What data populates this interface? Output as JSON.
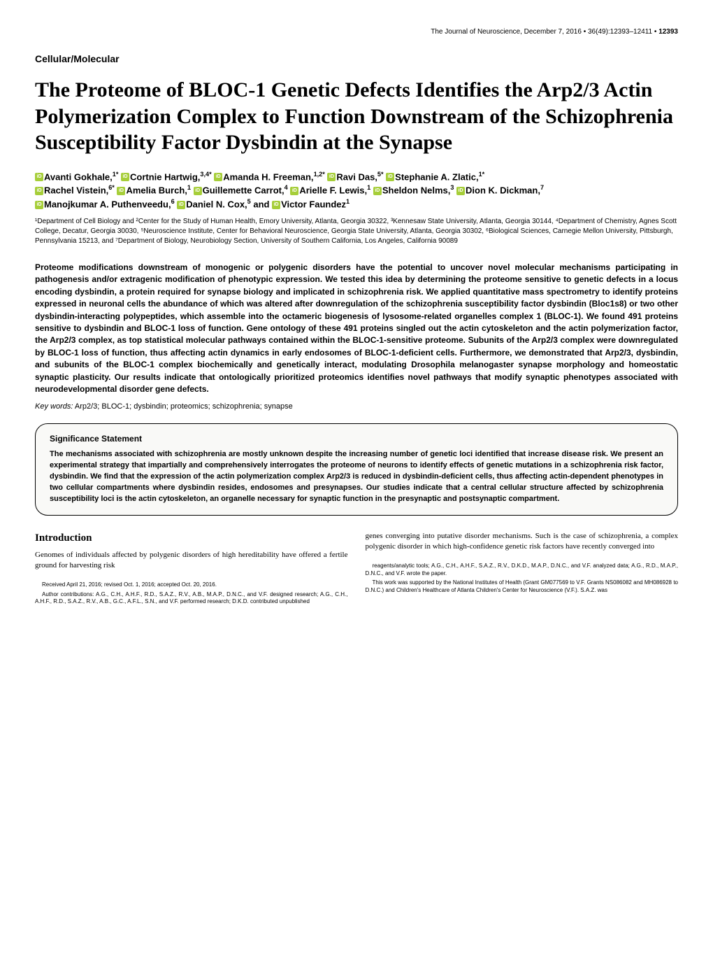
{
  "header": {
    "journal": "The Journal of Neuroscience, December 7, 2016",
    "volume": "36(49):12393–12411",
    "page": "12393"
  },
  "section_label": "Cellular/Molecular",
  "title": "The Proteome of BLOC-1 Genetic Defects Identifies the Arp2/3 Actin Polymerization Complex to Function Downstream of the Schizophrenia Susceptibility Factor Dysbindin at the Synapse",
  "authors": {
    "a1": "Avanti Gokhale,",
    "a1_sup": "1*",
    "a2": "Cortnie Hartwig,",
    "a2_sup": "3,4*",
    "a3": "Amanda H. Freeman,",
    "a3_sup": "1,2*",
    "a4": "Ravi Das,",
    "a4_sup": "5*",
    "a5": "Stephanie A. Zlatic,",
    "a5_sup": "1*",
    "a6": "Rachel Vistein,",
    "a6_sup": "6*",
    "a7": "Amelia Burch,",
    "a7_sup": "1",
    "a8": "Guillemette Carrot,",
    "a8_sup": "4",
    "a9": "Arielle F. Lewis,",
    "a9_sup": "1",
    "a10": "Sheldon Nelms,",
    "a10_sup": "3",
    "a11": "Dion K. Dickman,",
    "a11_sup": "7",
    "a12": "Manojkumar A. Puthenveedu,",
    "a12_sup": "6",
    "a13": "Daniel N. Cox,",
    "a13_sup": "5",
    "a14_pre": "and ",
    "a14": "Victor Faundez",
    "a14_sup": "1"
  },
  "affiliations": "¹Department of Cell Biology and ²Center for the Study of Human Health, Emory University, Atlanta, Georgia 30322, ³Kennesaw State University, Atlanta, Georgia 30144, ⁴Department of Chemistry, Agnes Scott College, Decatur, Georgia 30030, ⁵Neuroscience Institute, Center for Behavioral Neuroscience, Georgia State University, Atlanta, Georgia 30302, ⁶Biological Sciences, Carnegie Mellon University, Pittsburgh, Pennsylvania 15213, and ⁷Department of Biology, Neurobiology Section, University of Southern California, Los Angeles, California 90089",
  "abstract": "Proteome modifications downstream of monogenic or polygenic disorders have the potential to uncover novel molecular mechanisms participating in pathogenesis and/or extragenic modification of phenotypic expression. We tested this idea by determining the proteome sensitive to genetic defects in a locus encoding dysbindin, a protein required for synapse biology and implicated in schizophrenia risk. We applied quantitative mass spectrometry to identify proteins expressed in neuronal cells the abundance of which was altered after downregulation of the schizophrenia susceptibility factor dysbindin (Bloc1s8) or two other dysbindin-interacting polypeptides, which assemble into the octameric biogenesis of lysosome-related organelles complex 1 (BLOC-1). We found 491 proteins sensitive to dysbindin and BLOC-1 loss of function. Gene ontology of these 491 proteins singled out the actin cytoskeleton and the actin polymerization factor, the Arp2/3 complex, as top statistical molecular pathways contained within the BLOC-1-sensitive proteome. Subunits of the Arp2/3 complex were downregulated by BLOC-1 loss of function, thus affecting actin dynamics in early endosomes of BLOC-1-deficient cells. Furthermore, we demonstrated that Arp2/3, dysbindin, and subunits of the BLOC-1 complex biochemically and genetically interact, modulating Drosophila melanogaster synapse morphology and homeostatic synaptic plasticity. Our results indicate that ontologically prioritized proteomics identifies novel pathways that modify synaptic phenotypes associated with neurodevelopmental disorder gene defects.",
  "keywords_label": "Key words:",
  "keywords": " Arp2/3; BLOC-1; dysbindin; proteomics; schizophrenia; synapse",
  "significance": {
    "title": "Significance Statement",
    "body": "The mechanisms associated with schizophrenia are mostly unknown despite the increasing number of genetic loci identified that increase disease risk. We present an experimental strategy that impartially and comprehensively interrogates the proteome of neurons to identify effects of genetic mutations in a schizophrenia risk factor, dysbindin. We find that the expression of the actin polymerization complex Arp2/3 is reduced in dysbindin-deficient cells, thus affecting actin-dependent phenotypes in two cellular compartments where dysbindin resides, endosomes and presynapses. Our studies indicate that a central cellular structure affected by schizophrenia susceptibility loci is the actin cytoskeleton, an organelle necessary for synaptic function in the presynaptic and postsynaptic compartment."
  },
  "introduction": {
    "title": "Introduction",
    "left": "Genomes of individuals affected by polygenic disorders of high hereditability have offered a fertile ground for harvesting risk",
    "right": "genes converging into putative disorder mechanisms. Such is the case of schizophrenia, a complex polygenic disorder in which high-confidence genetic risk factors have recently converged into"
  },
  "footnotes": {
    "left1": "Received April 21, 2016; revised Oct. 1, 2016; accepted Oct. 20, 2016.",
    "left2": "Author contributions: A.G., C.H., A.H.F., R.D., S.A.Z., R.V., A.B., M.A.P., D.N.C., and V.F. designed research; A.G., C.H., A.H.F., R.D., S.A.Z., R.V., A.B., G.C., A.F.L., S.N., and V.F. performed research; D.K.D. contributed unpublished",
    "right1": "reagents/analytic tools; A.G., C.H., A.H.F., S.A.Z., R.V., D.K.D., M.A.P., D.N.C., and V.F. analyzed data; A.G., R.D., M.A.P., D.N.C., and V.F. wrote the paper.",
    "right2": "This work was supported by the National Institutes of Health (Grant GM077569 to V.F. Grants NS086082 and MH086928 to D.N.C.) and Children's Healthcare of Atlanta Children's Center for Neuroscience (V.F.). S.A.Z. was"
  }
}
